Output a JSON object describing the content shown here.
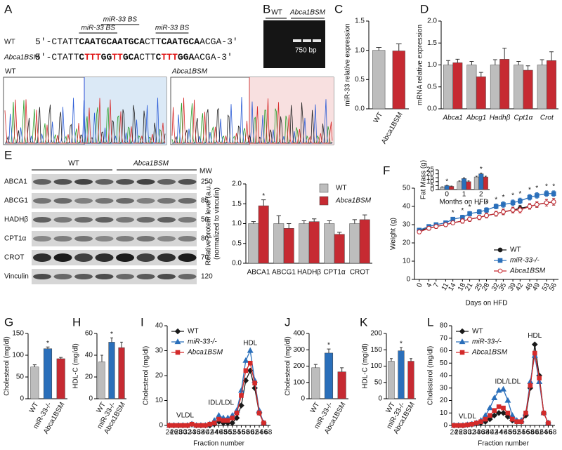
{
  "sequence": {
    "panel": "A",
    "wt_label": "WT",
    "bsm_label": "Abca1BSM",
    "sites": [
      "miR-33 BS",
      "miR-33 BS",
      "miR-33 BS"
    ],
    "wt": [
      {
        "text": "5'-CTATT",
        "style": "plain"
      },
      {
        "text": "CAATGCAATGCA",
        "style": "bold"
      },
      {
        "text": "CTT",
        "style": "plain"
      },
      {
        "text": "CAATGCA",
        "style": "bold"
      },
      {
        "text": "ACGA-3'",
        "style": "plain"
      }
    ],
    "bsm": [
      {
        "text": "5'-CTATT",
        "style": "plain"
      },
      {
        "text": "C",
        "style": "bold"
      },
      {
        "text": "TTT",
        "style": "mutant"
      },
      {
        "text": "GG",
        "style": "bold"
      },
      {
        "text": "TT",
        "style": "mutant"
      },
      {
        "text": "GCA",
        "style": "bold"
      },
      {
        "text": "CTT",
        "style": "plain"
      },
      {
        "text": "C",
        "style": "bold"
      },
      {
        "text": "TTT",
        "style": "mutant"
      },
      {
        "text": "GGA",
        "style": "bold"
      },
      {
        "text": "ACGA-3'",
        "style": "plain"
      }
    ],
    "trace_labels": [
      "WT",
      "Abca1BSM"
    ]
  },
  "gel": {
    "panel": "B",
    "lanes": [
      "WT",
      "Abca1BSM"
    ],
    "band": "750 bp"
  },
  "blot": {
    "panel": "E",
    "groups": [
      "WT",
      "Abca1BSM"
    ],
    "mw_header": "MW",
    "rows": [
      {
        "label": "ABCA1",
        "mw": 250
      },
      {
        "label": "ABCG1",
        "mw": 85
      },
      {
        "label": "HADHβ",
        "mw": 50
      },
      {
        "label": "CPT1α",
        "mw": 80
      },
      {
        "label": "CROT",
        "mw": 70
      },
      {
        "label": "Vinculin",
        "mw": 120
      }
    ]
  },
  "chart_data": [
    {
      "panel": "C",
      "type": "bar",
      "ylabel": "miR-33 relative expression",
      "categories": [
        "WT",
        "Abca1BSM"
      ],
      "series": [
        {
          "colors": [
            "#bdbdbd",
            "#c62a32"
          ],
          "values": [
            1.0,
            0.99
          ],
          "errors": [
            0.05,
            0.12
          ]
        }
      ],
      "ylim": [
        0,
        1.5
      ],
      "yticks": [
        {
          "value": 0,
          "label": "0.0"
        },
        {
          "value": 0.5,
          "label": "0.5"
        },
        {
          "value": 1,
          "label": "1.0"
        },
        {
          "value": 1.5,
          "label": "1.5"
        }
      ]
    },
    {
      "panel": "D",
      "type": "bar",
      "ylabel": "mRNA relative expression",
      "categories": [
        "Abca1",
        "Abcg1",
        "Hadhβ",
        "Cpt1α",
        "Crot"
      ],
      "category_style": "italic",
      "series": [
        {
          "color": "#bdbdbd",
          "values": [
            1.0,
            1.0,
            1.0,
            1.0,
            1.0
          ],
          "errors": [
            0.1,
            0.08,
            0.12,
            0.08,
            0.12
          ]
        },
        {
          "color": "#c62a32",
          "values": [
            1.05,
            0.73,
            1.13,
            0.88,
            1.1
          ],
          "errors": [
            0.08,
            0.1,
            0.25,
            0.1,
            0.2
          ]
        }
      ],
      "ylim": [
        0,
        2
      ],
      "yticks": [
        {
          "value": 0,
          "label": "0.0"
        },
        {
          "value": 0.5,
          "label": "0.5"
        },
        {
          "value": 1,
          "label": "1.0"
        },
        {
          "value": 1.5,
          "label": "1.5"
        },
        {
          "value": 2,
          "label": "2.0"
        }
      ]
    },
    {
      "type": "bar",
      "ylabel": [
        "Relative protein level (a.u.)",
        "(normalized to vinculin)"
      ],
      "categories": [
        "ABCA1",
        "ABCG1",
        "HADHβ",
        "CPT1α",
        "CROT"
      ],
      "legend": "top-right",
      "series": [
        {
          "name": "WT",
          "color": "#bdbdbd",
          "values": [
            1.0,
            1.0,
            1.0,
            1.0,
            1.0
          ],
          "errors": [
            0.05,
            0.2,
            0.07,
            0.07,
            0.1
          ]
        },
        {
          "name": "Abca1BSM",
          "color": "#c62a32",
          "values": [
            1.45,
            0.88,
            1.05,
            0.73,
            1.1
          ],
          "errors": [
            0.15,
            0.12,
            0.07,
            0.05,
            0.12
          ],
          "significance": [
            "*",
            null,
            null,
            null,
            null
          ]
        }
      ],
      "ylim": [
        0,
        2
      ],
      "yticks": [
        {
          "value": 0,
          "label": "0.0"
        },
        {
          "value": 0.5,
          "label": "0.5"
        },
        {
          "value": 1,
          "label": "1.0"
        },
        {
          "value": 1.5,
          "label": "1.5"
        },
        {
          "value": 2,
          "label": "2.0"
        }
      ]
    },
    {
      "panel": "F",
      "type": "line",
      "xlabel": "Days on HFD",
      "ylabel": "Weight (g)",
      "legend": "bottom-right",
      "x": [
        0,
        4,
        7,
        11,
        14,
        18,
        21,
        25,
        28,
        32,
        35,
        39,
        42,
        46,
        49,
        53,
        56
      ],
      "xlim": [
        -2,
        58
      ],
      "xticks": [
        0,
        4,
        7,
        11,
        14,
        18,
        21,
        25,
        28,
        32,
        35,
        39,
        42,
        46,
        49,
        53,
        56
      ],
      "ylim": [
        0,
        50
      ],
      "yticks": [
        0,
        10,
        20,
        30,
        40,
        50
      ],
      "series": [
        {
          "name": "WT",
          "color": "#1a1a1a",
          "marker": "circle",
          "values": [
            27,
            28,
            29,
            30,
            31,
            32,
            33,
            34,
            35,
            36,
            37,
            38,
            39,
            40,
            41,
            42,
            42.5
          ],
          "errors": [
            1,
            1,
            1,
            1,
            1,
            1.2,
            1.2,
            1.2,
            1.3,
            1.3,
            1.5,
            1.5,
            1.5,
            1.5,
            1.5,
            1.8,
            1.8
          ]
        },
        {
          "name": "miR-33-/-",
          "color": "#2a6fba",
          "marker": "square",
          "values": [
            27,
            29,
            30,
            31,
            33,
            34,
            36,
            37,
            38,
            40,
            41,
            42,
            43,
            45,
            46,
            47,
            47
          ],
          "errors": [
            1,
            1,
            1,
            1,
            1,
            1.2,
            1.2,
            1.2,
            1.3,
            1.3,
            1.5,
            1.5,
            1.5,
            1.5,
            1.5,
            1.5,
            1.5
          ],
          "significance": [
            null,
            null,
            null,
            null,
            "*",
            "*",
            "*",
            "*",
            "*",
            "*",
            "*",
            "*",
            "*",
            "*",
            "*",
            "*",
            "*"
          ]
        },
        {
          "name": "Abca1BSM",
          "color": "#c62a32",
          "marker": "circle",
          "open": true,
          "values": [
            26,
            28,
            29,
            30,
            31,
            32,
            33,
            34,
            35,
            36,
            37,
            38,
            38,
            40,
            41,
            42,
            42.5
          ],
          "errors": [
            1,
            1,
            1,
            1,
            1,
            1.2,
            1.2,
            1.2,
            1.3,
            1.3,
            1.5,
            1.5,
            1.5,
            1.5,
            1.5,
            1.8,
            1.8
          ]
        }
      ]
    },
    {
      "type": "bar",
      "xlabel": "Months on HFD",
      "ylabel": "Fat Mass (g)",
      "categories": [
        "0",
        "1",
        "2"
      ],
      "series": [
        {
          "color": "#bdbdbd",
          "values": [
            3,
            10,
            16
          ],
          "errors": [
            0.5,
            1,
            1
          ]
        },
        {
          "color": "#2a6fba",
          "values": [
            5,
            14,
            20
          ],
          "errors": [
            0.5,
            1,
            1
          ],
          "significance": [
            "*",
            null,
            "*"
          ]
        },
        {
          "color": "#c62a32",
          "values": [
            4,
            10,
            16
          ],
          "errors": [
            0.5,
            1,
            1
          ]
        }
      ],
      "ylim": [
        0,
        25
      ],
      "yticks": [
        0,
        5,
        10,
        15,
        20,
        25
      ]
    },
    {
      "panel": "G",
      "type": "bar",
      "ylabel": "Cholesterol (mg/dl)",
      "categories": [
        "WT",
        "miR-33-/-",
        "Abca1BSM"
      ],
      "series": [
        {
          "colors": [
            "#bdbdbd",
            "#2a6fba",
            "#c62a32"
          ],
          "values": [
            73,
            115,
            92
          ],
          "errors": [
            5,
            4,
            3
          ],
          "significance": [
            null,
            "*",
            null
          ]
        }
      ],
      "ylim": [
        0,
        150
      ],
      "yticks": [
        0,
        50,
        100,
        150
      ]
    },
    {
      "panel": "H",
      "type": "bar",
      "ylabel": "HDL-C (mg/dl)",
      "categories": [
        "WT",
        "miR-33-/-",
        "Abca1BSM"
      ],
      "series": [
        {
          "colors": [
            "#bdbdbd",
            "#2a6fba",
            "#c62a32"
          ],
          "values": [
            34,
            52,
            47
          ],
          "errors": [
            6,
            4,
            5
          ],
          "significance": [
            null,
            "*",
            null
          ]
        }
      ],
      "ylim": [
        0,
        60
      ],
      "yticks": [
        0,
        20,
        40,
        60
      ]
    },
    {
      "panel": "I",
      "type": "line",
      "xlabel": "Fraction number",
      "ylabel": "Cholesterol (mg/dl)",
      "legend": "top-left",
      "annotations": [
        "VLDL",
        "IDL/LDL",
        "HDL"
      ],
      "x": [
        24,
        26,
        28,
        30,
        32,
        34,
        36,
        38,
        40,
        42,
        44,
        46,
        48,
        50,
        52,
        54,
        56,
        58,
        60,
        62,
        64,
        66
      ],
      "xlim": [
        23,
        69
      ],
      "xticks": [
        24,
        26,
        28,
        30,
        32,
        34,
        36,
        38,
        40,
        42,
        44,
        46,
        48,
        50,
        52,
        54,
        56,
        58,
        60,
        62,
        64,
        66,
        68
      ],
      "ylim": [
        0,
        40
      ],
      "yticks": [
        0,
        10,
        20,
        30,
        40
      ],
      "series": [
        {
          "name": "WT",
          "color": "#1a1a1a",
          "marker": "diamond",
          "values": [
            0,
            0,
            0,
            0,
            0,
            0.5,
            0,
            0,
            0,
            0,
            0.5,
            1.5,
            1,
            1,
            1,
            3,
            8,
            18,
            22,
            15,
            5,
            1
          ]
        },
        {
          "name": "miR-33-/-",
          "color": "#2a6fba",
          "marker": "triangle",
          "values": [
            0,
            0,
            0,
            0,
            0,
            0.5,
            0,
            0,
            0,
            0.5,
            2,
            4,
            3,
            3,
            4,
            6,
            14,
            26,
            30,
            18,
            6,
            1
          ]
        },
        {
          "name": "Abca1BSM",
          "color": "#d32a2a",
          "marker": "square",
          "values": [
            0,
            0,
            0,
            0,
            0,
            0.5,
            0,
            0,
            0,
            0.5,
            1,
            2.5,
            2,
            2,
            3,
            5,
            12,
            22,
            25,
            17,
            5,
            1
          ]
        }
      ]
    },
    {
      "panel": "J",
      "type": "bar",
      "ylabel": "Cholesterol (mg/dl)",
      "categories": [
        "WT",
        "miR-33-/-",
        "Abca1BSM"
      ],
      "series": [
        {
          "colors": [
            "#bdbdbd",
            "#2a6fba",
            "#c62a32"
          ],
          "values": [
            190,
            280,
            165
          ],
          "errors": [
            20,
            25,
            25
          ],
          "significance": [
            null,
            "*",
            null
          ]
        }
      ],
      "ylim": [
        0,
        400
      ],
      "yticks": [
        0,
        100,
        200,
        300,
        400
      ]
    },
    {
      "panel": "K",
      "type": "bar",
      "ylabel": "HDL-C (mg/dl)",
      "categories": [
        "WT",
        "miR-33-/-",
        "Abca1BSM"
      ],
      "series": [
        {
          "colors": [
            "#bdbdbd",
            "#2a6fba",
            "#c62a32"
          ],
          "values": [
            115,
            147,
            115
          ],
          "errors": [
            8,
            10,
            8
          ],
          "significance": [
            null,
            "*",
            null
          ]
        }
      ],
      "ylim": [
        0,
        200
      ],
      "yticks": [
        0,
        50,
        100,
        150,
        200
      ]
    },
    {
      "panel": "L",
      "type": "line",
      "xlabel": "Fraction number",
      "ylabel": "Cholesterol (mg/dl)",
      "legend": "top-left",
      "annotations": [
        "VLDL",
        "IDL/LDL",
        "HDL"
      ],
      "x": [
        24,
        26,
        28,
        30,
        32,
        34,
        36,
        38,
        40,
        42,
        44,
        46,
        48,
        50,
        52,
        54,
        56,
        58,
        60,
        62,
        64,
        66
      ],
      "xlim": [
        23,
        69
      ],
      "xticks": [
        24,
        26,
        28,
        30,
        32,
        34,
        36,
        38,
        40,
        42,
        44,
        46,
        48,
        50,
        52,
        54,
        56,
        58,
        60,
        62,
        64,
        66,
        68
      ],
      "ylim": [
        0,
        80
      ],
      "yticks": [
        0,
        10,
        20,
        30,
        40,
        50,
        60,
        70,
        80
      ],
      "series": [
        {
          "name": "WT",
          "color": "#1a1a1a",
          "marker": "diamond",
          "values": [
            0,
            0,
            0,
            0.5,
            1,
            1.5,
            2,
            3,
            5,
            8,
            10,
            10,
            7,
            4,
            3,
            3,
            8,
            30,
            65,
            40,
            10,
            2
          ]
        },
        {
          "name": "miR-33-/-",
          "color": "#2a6fba",
          "marker": "triangle",
          "values": [
            0,
            0,
            0,
            0.5,
            1,
            2,
            4,
            8,
            14,
            22,
            28,
            29,
            20,
            8,
            4,
            4,
            10,
            35,
            56,
            35,
            10,
            2
          ]
        },
        {
          "name": "Abca1BSM",
          "color": "#d32a2a",
          "marker": "square",
          "values": [
            0,
            0,
            0,
            0.5,
            1,
            2,
            3,
            5,
            8,
            12,
            15,
            14,
            10,
            5,
            3,
            3,
            10,
            32,
            58,
            38,
            10,
            2
          ]
        }
      ]
    }
  ]
}
